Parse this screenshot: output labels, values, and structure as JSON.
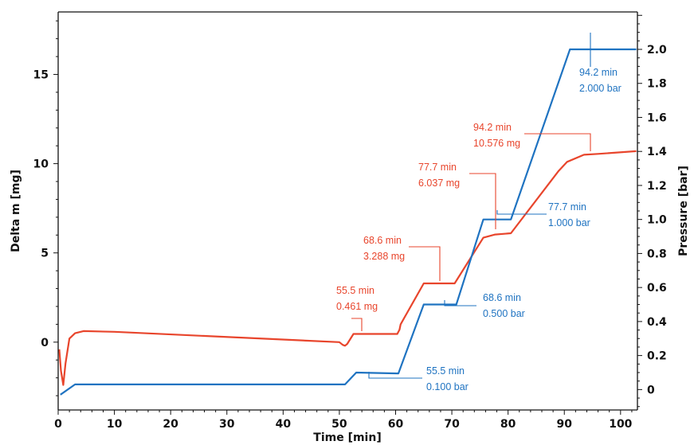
{
  "chart_data": {
    "type": "line",
    "xlabel": "Time [min]",
    "ylabel": "Delta m [mg]",
    "y2label": "Pressure [bar]",
    "xlim": [
      0,
      103
    ],
    "ylim": [
      -3.8,
      18.5
    ],
    "y2lim": [
      -0.12,
      2.22
    ],
    "x_ticks": [
      "0",
      "10",
      "20",
      "30",
      "40",
      "50",
      "60",
      "70",
      "80",
      "90",
      "100"
    ],
    "y_ticks": [
      "0",
      "5",
      "10",
      "15"
    ],
    "y2_ticks": [
      "0",
      "0.2",
      "0.4",
      "0.6",
      "0.8",
      "1.0",
      "1.2",
      "1.4",
      "1.6",
      "1.8",
      "2.0"
    ],
    "colors": {
      "mass": "#e8452c",
      "pressure": "#1f73c1",
      "axis": "#111111"
    },
    "series": [
      {
        "axis": "left",
        "points": [
          [
            0.2,
            -0.4
          ],
          [
            0.5,
            -1.6
          ],
          [
            0.9,
            -2.4
          ],
          [
            1.3,
            -1.2
          ],
          [
            2,
            0.2
          ],
          [
            3,
            0.5
          ],
          [
            4.5,
            0.62
          ],
          [
            10,
            0.58
          ],
          [
            50,
            0
          ],
          [
            50.6,
            -0.15
          ],
          [
            51,
            -0.2
          ],
          [
            51.4,
            -0.1
          ],
          [
            52.5,
            0.46
          ],
          [
            60.3,
            0.46
          ],
          [
            60.7,
            0.7
          ],
          [
            60.9,
            1.0
          ],
          [
            65,
            3.29
          ],
          [
            70.5,
            3.29
          ],
          [
            75.6,
            5.85
          ],
          [
            77.7,
            6.03
          ],
          [
            80.5,
            6.1
          ],
          [
            89,
            9.6
          ],
          [
            90.5,
            10.1
          ],
          [
            93.5,
            10.5
          ],
          [
            96,
            10.55
          ],
          [
            102.8,
            10.7
          ]
        ]
      },
      {
        "axis": "right",
        "points": [
          [
            0.4,
            -0.03
          ],
          [
            3,
            0.03
          ],
          [
            51,
            0.03
          ],
          [
            53,
            0.1
          ],
          [
            60.5,
            0.095
          ],
          [
            65,
            0.5
          ],
          [
            70.8,
            0.5
          ],
          [
            75.6,
            1.0
          ],
          [
            80.5,
            1.0
          ],
          [
            91,
            2.0
          ],
          [
            102.8,
            2.0
          ]
        ]
      }
    ],
    "annotations": [
      {
        "series": 0,
        "line1": "55.5 min",
        "line2": "0.461 mg",
        "x": 55.5,
        "y": 0.46
      },
      {
        "series": 0,
        "line1": "68.6 min",
        "line2": "3.288 mg",
        "x": 68.6,
        "y": 3.29
      },
      {
        "series": 0,
        "line1": "77.7 min",
        "line2": "6.037 mg",
        "x": 77.7,
        "y": 6.04
      },
      {
        "series": 0,
        "line1": "94.2 min",
        "line2": "10.576 mg",
        "x": 94.2,
        "y": 10.58
      },
      {
        "series": 1,
        "line1": "55.5 min",
        "line2": "0.100 bar",
        "x": 55.5,
        "y": 0.1
      },
      {
        "series": 1,
        "line1": "68.6 min",
        "line2": "0.500 bar",
        "x": 68.6,
        "y": 0.5
      },
      {
        "series": 1,
        "line1": "77.7 min",
        "line2": "1.000 bar",
        "x": 77.7,
        "y": 1.0
      },
      {
        "series": 1,
        "line1": "94.2 min",
        "line2": "2.000 bar",
        "x": 94.2,
        "y": 2.0
      }
    ]
  }
}
